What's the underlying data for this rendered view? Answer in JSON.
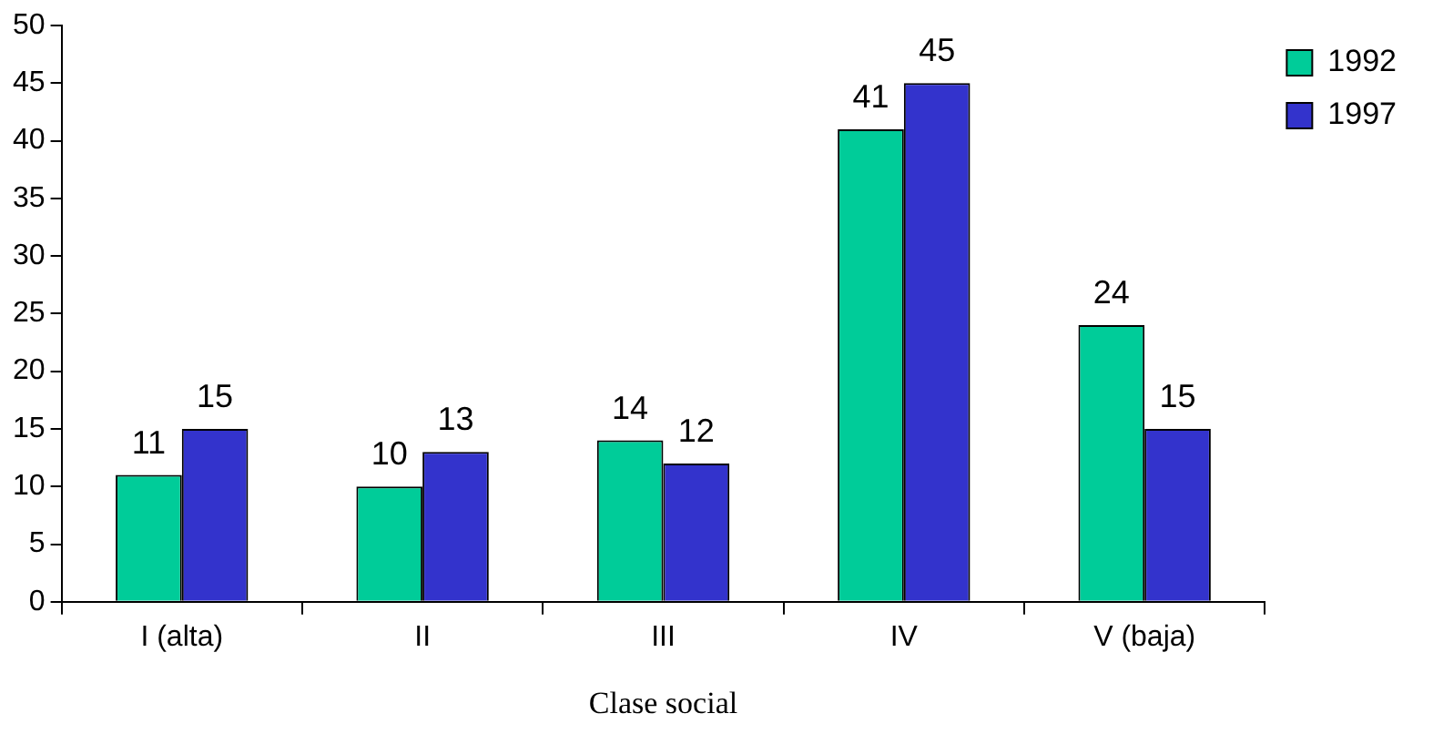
{
  "chart_data": {
    "type": "bar",
    "xlabel": "Clase social",
    "categories": [
      "I (alta)",
      "II",
      "III",
      "IV",
      "V (baja)"
    ],
    "series": [
      {
        "name": "1992",
        "color": "#00cc99",
        "values": [
          11,
          10,
          14,
          41,
          24
        ]
      },
      {
        "name": "1997",
        "color": "#3333cc",
        "values": [
          15,
          13,
          12,
          45,
          15
        ]
      }
    ],
    "ylim": [
      0,
      50
    ],
    "yticks": [
      0,
      5,
      10,
      15,
      20,
      25,
      30,
      35,
      40,
      45,
      50
    ],
    "grid": false,
    "legend": "top right",
    "data_labels": true
  }
}
